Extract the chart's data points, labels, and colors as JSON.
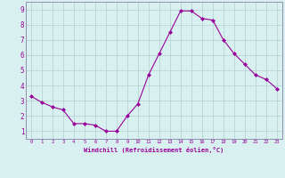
{
  "x": [
    0,
    1,
    2,
    3,
    4,
    5,
    6,
    7,
    8,
    9,
    10,
    11,
    12,
    13,
    14,
    15,
    16,
    17,
    18,
    19,
    20,
    21,
    22,
    23
  ],
  "y": [
    3.3,
    2.9,
    2.6,
    2.4,
    1.5,
    1.5,
    1.4,
    1.0,
    1.0,
    2.0,
    2.8,
    4.7,
    6.1,
    7.5,
    8.9,
    8.9,
    8.4,
    8.3,
    7.0,
    6.1,
    5.4,
    4.7,
    4.4,
    3.8
  ],
  "line_color": "#990099",
  "marker": "D",
  "marker_size": 2,
  "bg_color": "#d8f0f0",
  "grid_color": "#b8d4d4",
  "xlabel": "Windchill (Refroidissement éolien,°C)",
  "xlabel_color": "#990099",
  "tick_color": "#990099",
  "yticks": [
    1,
    2,
    3,
    4,
    5,
    6,
    7,
    8,
    9
  ],
  "xticks": [
    0,
    1,
    2,
    3,
    4,
    5,
    6,
    7,
    8,
    9,
    10,
    11,
    12,
    13,
    14,
    15,
    16,
    17,
    18,
    19,
    20,
    21,
    22,
    23
  ],
  "ylim": [
    0.5,
    9.5
  ],
  "xlim": [
    -0.5,
    23.5
  ]
}
